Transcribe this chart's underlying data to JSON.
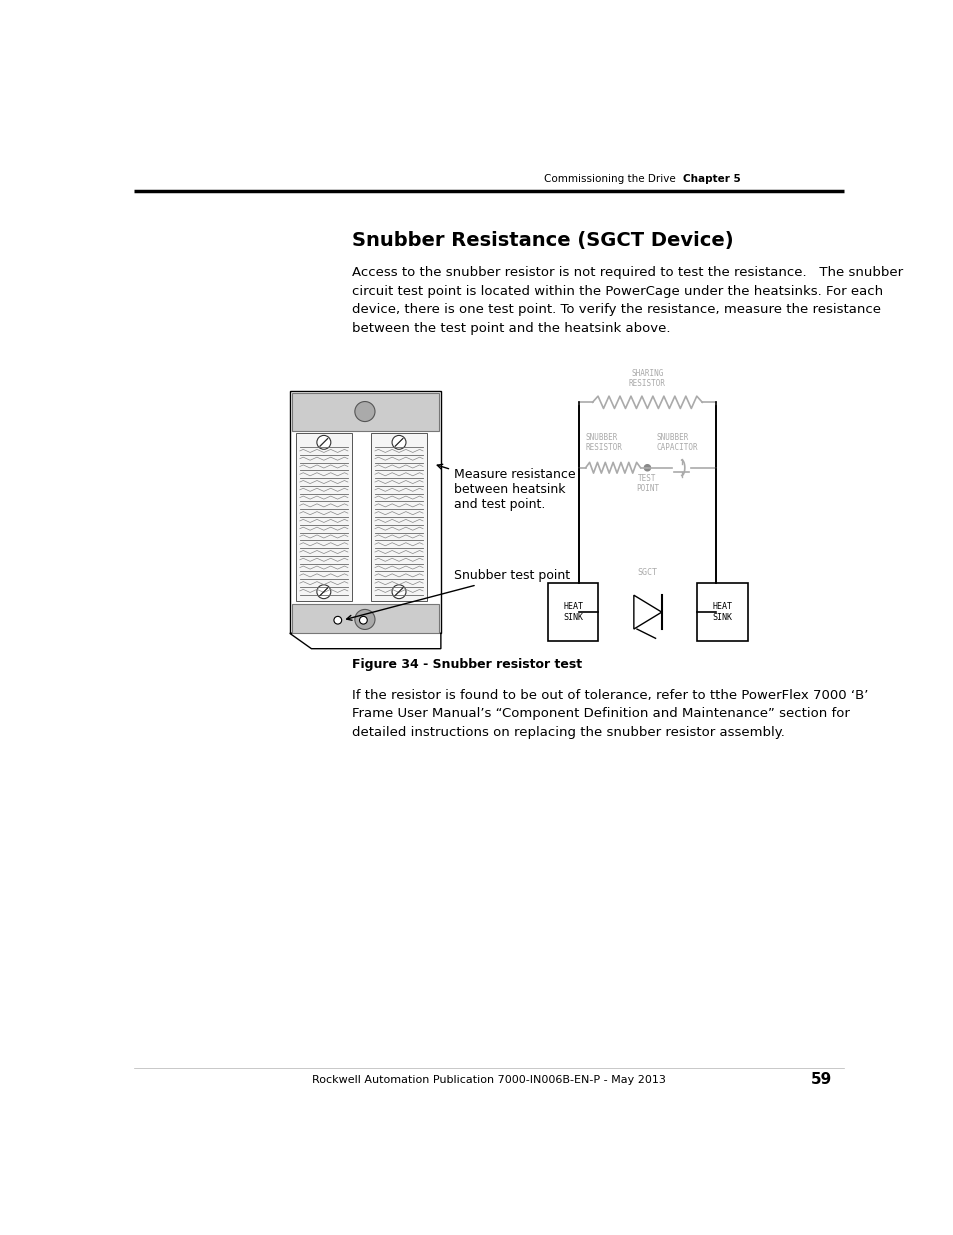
{
  "page_bg": "#ffffff",
  "header_text": "Commissioning the Drive",
  "header_chapter": "Chapter 5",
  "title": "Snubber Resistance (SGCT Device)",
  "body_text_1": "Access to the snubber resistor is not required to test the resistance.   The snubber\ncircuit test point is located within the PowerCage under the heatsinks. For each\ndevice, there is one test point. To verify the resistance, measure the resistance\nbetween the test point and the heatsink above.",
  "label_measure": "Measure resistance\nbetween heatsink\nand test point.",
  "label_snubber": "Snubber test point",
  "figure_caption": "Figure 34 - Snubber resistor test",
  "body_text_2": "If the resistor is found to be out of tolerance, refer to tthe PowerFlex 7000 ‘B’\nFrame User Manual’s “Component Definition and Maintenance” section for\ndetailed instructions on replacing the snubber resistor assembly.",
  "footer_text": "Rockwell Automation Publication 7000-IN006B-EN-P - May 2013",
  "footer_page": "59",
  "text_color": "#000000",
  "circuit_color": "#aaaaaa",
  "circuit_lw": 1.2
}
